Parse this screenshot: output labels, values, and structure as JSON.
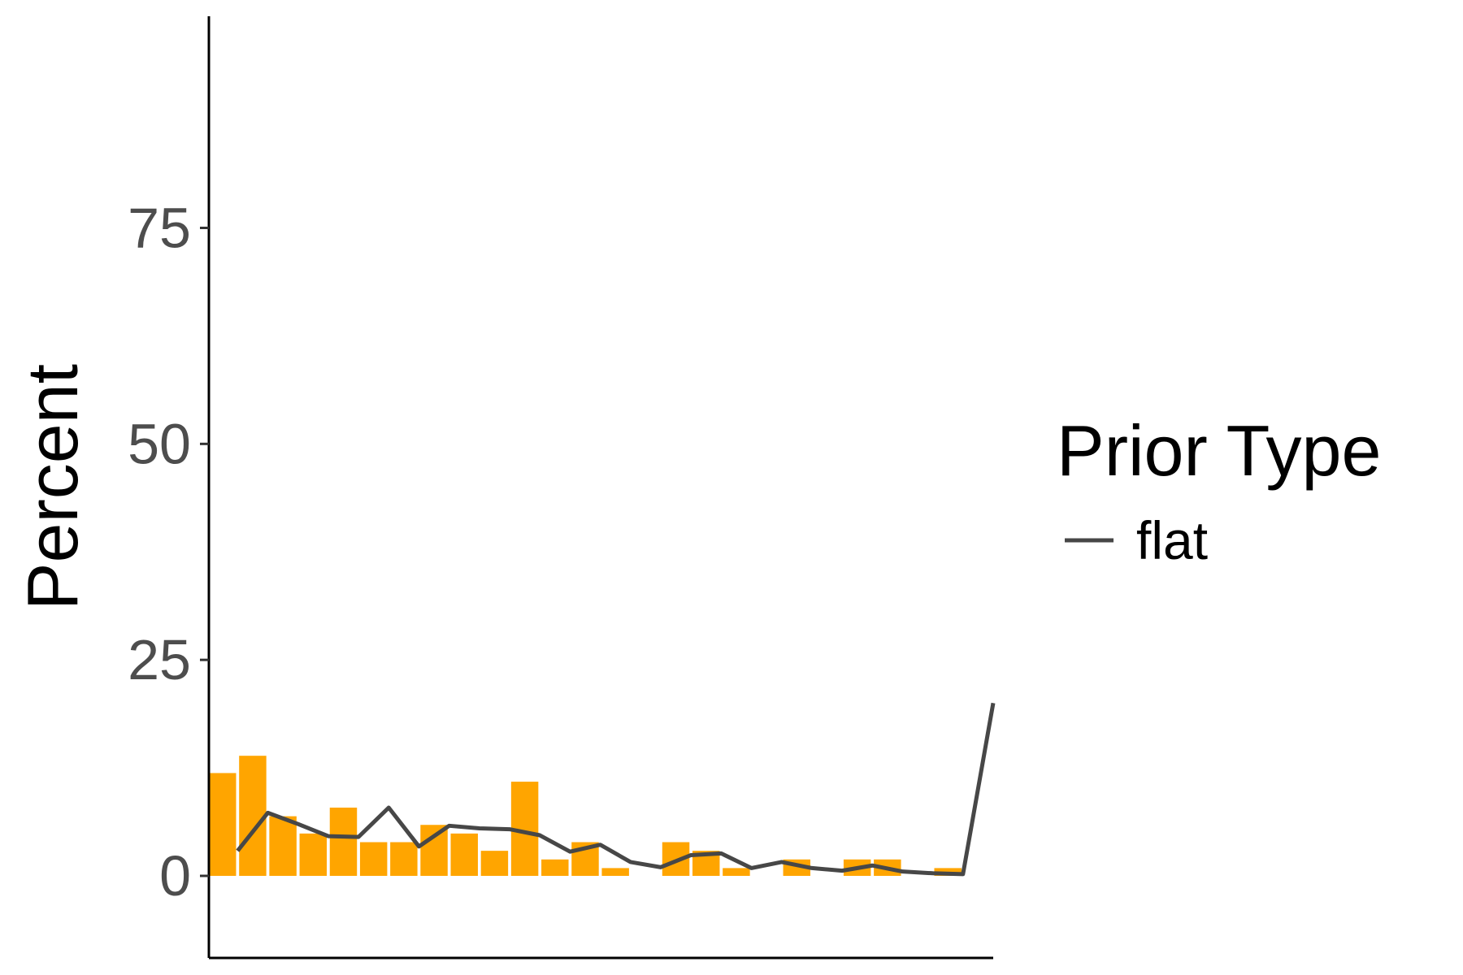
{
  "chart_data": {
    "type": "bar",
    "title": "",
    "xlabel": "",
    "ylabel": "Percent",
    "ylim": [
      -9.5,
      99.5
    ],
    "yticks": [
      0,
      25,
      50,
      75
    ],
    "ytick_labels": [
      "0",
      "25",
      "50",
      "75"
    ],
    "x": [
      1,
      2,
      3,
      4,
      5,
      6,
      7,
      8,
      9,
      10,
      11,
      12,
      13,
      14,
      15,
      16,
      17,
      18,
      19,
      20,
      21,
      22,
      23,
      24,
      25,
      26
    ],
    "xlim": [
      0.55,
      26.5
    ],
    "bar_values": [
      11.9,
      13.9,
      6.9,
      4.9,
      7.9,
      3.9,
      3.9,
      5.9,
      4.9,
      2.9,
      10.9,
      1.9,
      3.9,
      0.9,
      0,
      3.9,
      2.9,
      0.9,
      0,
      1.9,
      0,
      1.9,
      1.9,
      0,
      0.9,
      0
    ],
    "bar_color": "#ffa500",
    "grid": false,
    "series": [
      {
        "name": "flat",
        "type": "line",
        "color": "#474747",
        "x": [
          1.5,
          2.5,
          3.5,
          4.5,
          5.5,
          6.5,
          7.5,
          8.5,
          9.5,
          10.5,
          11.5,
          12.5,
          13.5,
          14.5,
          15.5,
          16.5,
          17.5,
          18.5,
          19.5,
          20.5,
          21.5,
          22.5,
          23.5,
          24.5,
          25.5,
          26.5
        ],
        "values": [
          2.9,
          7.3,
          6.0,
          4.6,
          4.5,
          7.9,
          3.4,
          5.8,
          5.5,
          5.4,
          4.7,
          2.8,
          3.6,
          1.6,
          1.0,
          2.4,
          2.6,
          0.9,
          1.6,
          0.9,
          0.6,
          1.2,
          0.5,
          0.3,
          0.2,
          20.0
        ]
      }
    ],
    "legend": {
      "title": "Prior Type",
      "position": "right",
      "entries": [
        {
          "label": "flat",
          "color": "#474747"
        }
      ]
    }
  }
}
